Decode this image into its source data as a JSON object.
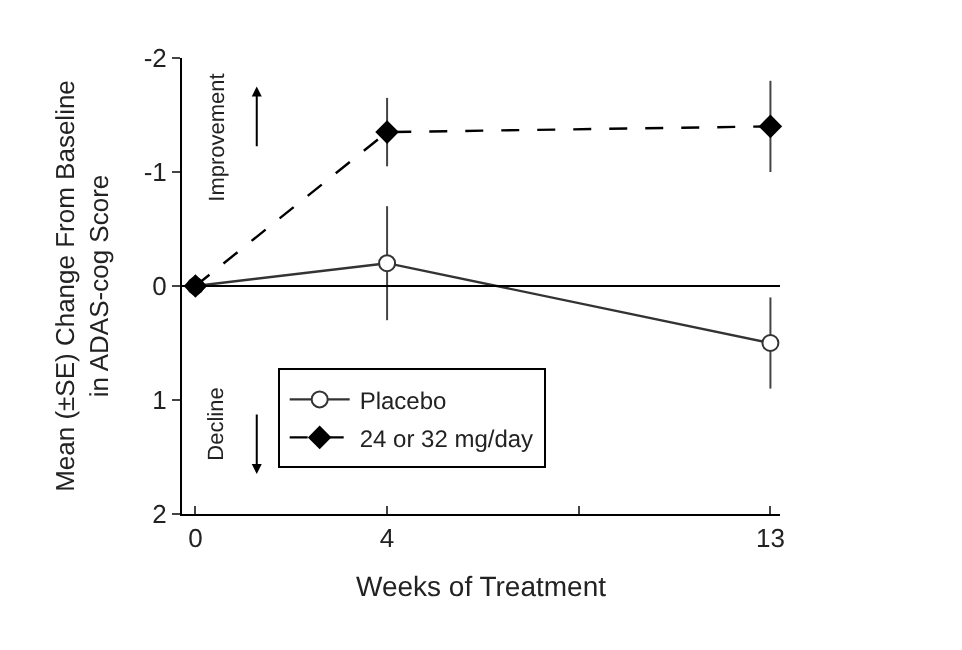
{
  "chart_data": {
    "type": "line",
    "xlabel": "Weeks of Treatment",
    "ylabel": "Mean (±SE) Change From Baseline\nin ADAS-cog Score",
    "categories": [
      "0",
      "4",
      null,
      "13"
    ],
    "series": [
      {
        "name": "Placebo",
        "color": "#333333",
        "marker": "circle",
        "line_style": "solid",
        "values": [
          0,
          -0.2,
          null,
          0.5
        ],
        "errors": [
          null,
          0.5,
          null,
          0.4
        ]
      },
      {
        "name": "24 or 32 mg/day",
        "color": "#000000",
        "marker": "diamond",
        "line_style": "dashed",
        "values": [
          0,
          -1.35,
          null,
          -1.4
        ],
        "errors": [
          null,
          0.3,
          null,
          0.4
        ]
      }
    ],
    "ylim": [
      2,
      -2
    ],
    "yticks": [
      -2,
      -1,
      0,
      1,
      2
    ],
    "grid": false,
    "legend": "bottom left",
    "ref_lines": [
      {
        "axis": "y",
        "value": 0,
        "color": "#000000"
      }
    ],
    "annotations": [
      "Improvement",
      "Decline"
    ]
  }
}
